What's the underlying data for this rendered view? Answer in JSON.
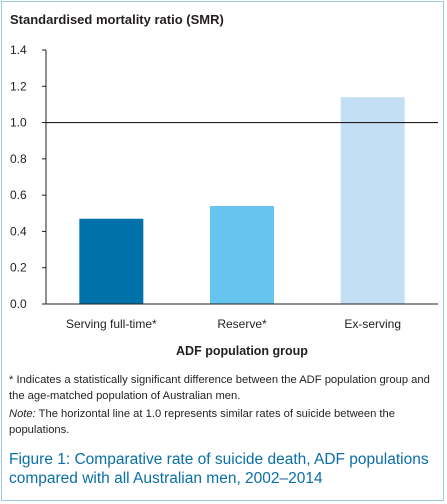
{
  "chart_data": {
    "type": "bar",
    "title": "Standardised mortality ratio (SMR)",
    "xlabel": "ADF population group",
    "ylabel": "",
    "categories": [
      "Serving full-time*",
      "Reserve*",
      "Ex-serving"
    ],
    "values": [
      0.47,
      0.54,
      1.14
    ],
    "bar_colors": [
      "#0072a9",
      "#66c5ef",
      "#c2dff3"
    ],
    "ylim": [
      0,
      1.4
    ],
    "yticks": [
      "0.0",
      "0.2",
      "0.4",
      "0.6",
      "0.8",
      "1.0",
      "1.2",
      "1.4"
    ],
    "reference_line": 1.0,
    "grid": false
  },
  "notes": {
    "significance": "* Indicates a statistically significant difference between the ADF population group and the age-matched population of Australian men.",
    "note_label": "Note:",
    "note_text": " The horizontal line at 1.0 represents similar rates of suicide between the populations."
  },
  "caption": {
    "figure_label": "Figure 1:",
    "text": " Comparative rate of suicide death, ADF populations compared with all Australian men, 2002–2014"
  },
  "colors": {
    "caption": "#0a6fa6",
    "border": "#9ccbe8",
    "axis": "#231f20"
  }
}
